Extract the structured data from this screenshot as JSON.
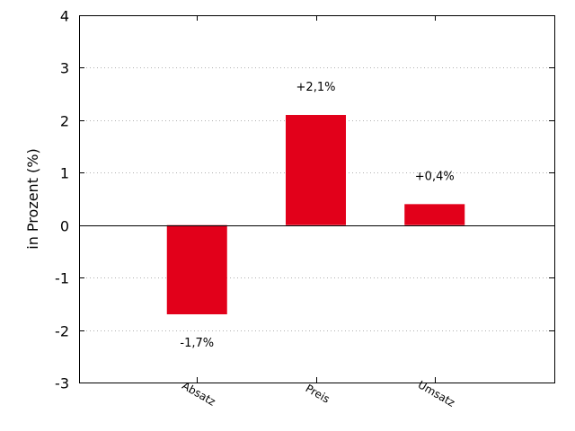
{
  "chart_data": {
    "type": "bar",
    "categories": [
      "Absatz",
      "Preis",
      "Umsatz"
    ],
    "values": [
      -1.7,
      2.1,
      0.4
    ],
    "data_labels": [
      "-1,7%",
      "+2,1%",
      "+0,4%"
    ],
    "ylabel": "in Prozent (%)",
    "ylim": [
      -3,
      4
    ],
    "yticks": [
      -3,
      -2,
      -1,
      0,
      1,
      2,
      3,
      4
    ],
    "grid": "horizontal-dotted",
    "bar_color": "#e2001a"
  }
}
